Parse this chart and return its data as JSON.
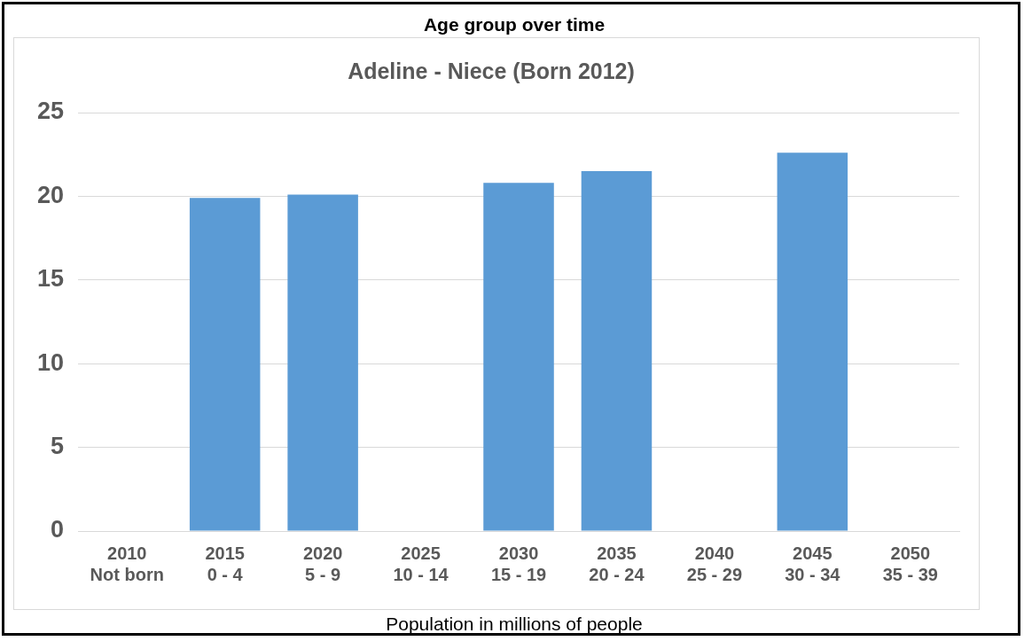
{
  "chart_data": {
    "type": "bar",
    "title": "Age group over time",
    "subtitle": "Adeline - Niece (Born 2012)",
    "xlabel": "Population in millions of people",
    "categories": [
      "2010\nNot born",
      "2015\n0 - 4",
      "2020\n5 - 9",
      "2025\n10 - 14",
      "2030\n15 - 19",
      "2035\n20 - 24",
      "2040\n25 - 29",
      "2045\n30 - 34",
      "2050\n35 - 39"
    ],
    "values": [
      null,
      19.9,
      20.1,
      null,
      20.8,
      21.5,
      null,
      22.6,
      null
    ],
    "color": "#5b9bd5",
    "ylim": [
      0,
      25
    ],
    "yticks": [
      0,
      5,
      10,
      15,
      20,
      25
    ],
    "grid": "y",
    "legend": false
  }
}
